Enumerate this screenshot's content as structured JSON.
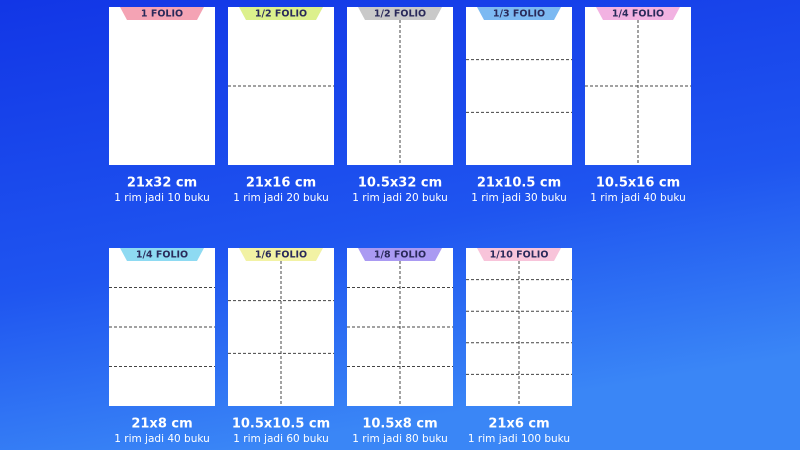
{
  "items": [
    {
      "label": "1 FOLIO",
      "size": "21x32 cm",
      "note": "1 rim jadi 10 buku",
      "color": "#f4a3b4"
    },
    {
      "label": "1/2 FOLIO",
      "size": "21x16 cm",
      "note": "1 rim jadi 20 buku",
      "color": "#dcf08c"
    },
    {
      "label": "1/2 FOLIO",
      "size": "10.5x32 cm",
      "note": "1 rim jadi 20 buku",
      "color": "#c9c9c9"
    },
    {
      "label": "1/3 FOLIO",
      "size": "21x10.5 cm",
      "note": "1 rim jadi 30 buku",
      "color": "#7cb9f2"
    },
    {
      "label": "1/4 FOLIO",
      "size": "10.5x16 cm",
      "note": "1 rim jadi 40 buku",
      "color": "#f2b2e2"
    },
    {
      "label": "1/4 FOLIO",
      "size": "21x8 cm",
      "note": "1 rim jadi 40 buku",
      "color": "#8edaf2"
    },
    {
      "label": "1/6 FOLIO",
      "size": "10.5x10.5 cm",
      "note": "1 rim jadi 60 buku",
      "color": "#f2f2a4"
    },
    {
      "label": "1/8 FOLIO",
      "size": "10.5x8 cm",
      "note": "1 rim jadi 80 buku",
      "color": "#aa9af2"
    },
    {
      "label": "1/10 FOLIO",
      "size": "21x6 cm",
      "note": "1 rim jadi 100 buku",
      "color": "#f8c4da"
    }
  ]
}
